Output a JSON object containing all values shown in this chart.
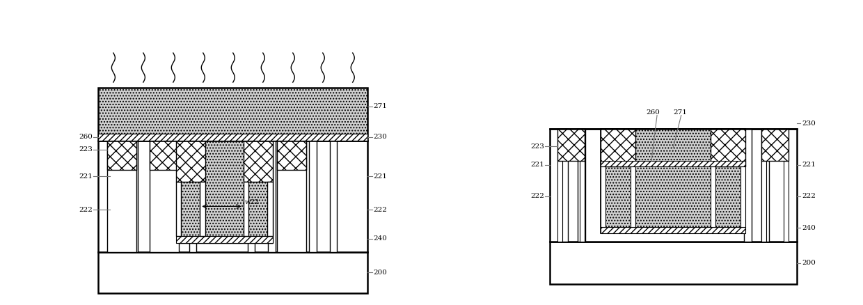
{
  "fig_width": 12.4,
  "fig_height": 4.38,
  "dpi": 100,
  "bg_color": "#ffffff",
  "gray_fill": "#d0d0d0",
  "white_fill": "#ffffff",
  "black": "#000000",
  "lc": "#777777"
}
